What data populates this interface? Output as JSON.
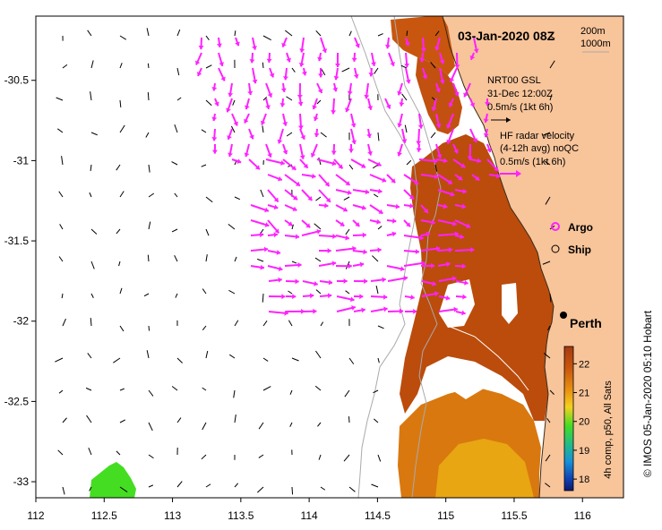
{
  "title": "03-Jan-2020 08Z",
  "depth_contours": [
    "200m",
    "1000m"
  ],
  "model_legend": {
    "line1": "NRT00 GSL",
    "line2": "31-Dec 12:00Z",
    "scale": "0.5m/s (1kt 6h)"
  },
  "radar_legend": {
    "line1": "HF radar velocity",
    "line2": "(4-12h avg) noQC",
    "scale": "0.5m/s (1kt 6h)"
  },
  "markers": {
    "argo": "Argo",
    "ship": "Ship"
  },
  "city": "Perth",
  "colorbar": {
    "label": "4h comp, p50, All Sats",
    "ticks": [
      "22",
      "21",
      "20",
      "19",
      "18"
    ],
    "tick_values": [
      22,
      21,
      20,
      19,
      18
    ],
    "range": [
      17.6,
      22.6
    ]
  },
  "credit": "© IMOS 05-Jan-2020 05:10 Hobart",
  "axes": {
    "x_ticks": [
      "112",
      "112.5",
      "113",
      "113.5",
      "114",
      "114.5",
      "115",
      "115.5",
      "116"
    ],
    "x_values": [
      112,
      112.5,
      113,
      113.5,
      114,
      114.5,
      115,
      115.5,
      116
    ],
    "y_ticks": [
      "-30.5",
      "-31",
      "-31.5",
      "-32",
      "-32.5",
      "-33"
    ],
    "y_values": [
      -30.5,
      -31,
      -31.5,
      -32,
      -32.5,
      -33
    ],
    "lon_range": [
      112,
      116.3
    ],
    "lat_range": [
      -33.1,
      -30.1
    ]
  },
  "colors": {
    "land": "#f8c49a",
    "radar_arrow": "#ff22ff",
    "model_arrow": "#000000",
    "warm_sst": "#bb4c0c",
    "mid_sst": "#d9780f",
    "cool_sst": "#e8a612",
    "green_sst": "#44dd22",
    "contour": "#aaaaaa"
  }
}
